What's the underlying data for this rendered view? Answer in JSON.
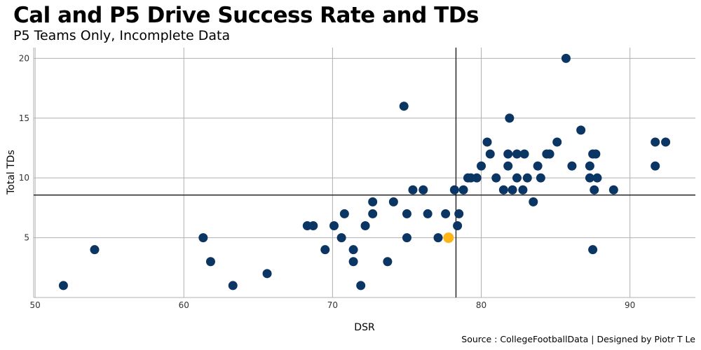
{
  "chart_data": {
    "type": "scatter",
    "title": "Cal and P5 Drive Success Rate and TDs",
    "subtitle": "P5 Teams Only, Incomplete Data",
    "caption": "Source : CollegeFootballData | Designed by Piotr T Le",
    "xlabel": "DSR",
    "ylabel": "Total TDs",
    "xlim": [
      49.9,
      94.4
    ],
    "ylim": [
      0,
      20.9
    ],
    "xticks": [
      50,
      60,
      70,
      80,
      90
    ],
    "yticks": [
      5,
      10,
      15,
      20
    ],
    "grid": true,
    "reference_lines": {
      "vertical_x": 78.3,
      "horizontal_y": 8.57
    },
    "colors": {
      "teams": "#0b3563",
      "cal": "#fdb515"
    },
    "highlight": {
      "team": "Cal",
      "x": 77.8,
      "y": 5
    },
    "points": [
      [
        51.9,
        1
      ],
      [
        54.0,
        4
      ],
      [
        61.3,
        5
      ],
      [
        61.8,
        3
      ],
      [
        63.3,
        1
      ],
      [
        65.6,
        2
      ],
      [
        68.3,
        6
      ],
      [
        68.7,
        6
      ],
      [
        69.5,
        4
      ],
      [
        70.1,
        6
      ],
      [
        70.6,
        5
      ],
      [
        70.8,
        7
      ],
      [
        71.4,
        4
      ],
      [
        71.4,
        3
      ],
      [
        71.9,
        1
      ],
      [
        72.2,
        6
      ],
      [
        72.7,
        7
      ],
      [
        72.7,
        8
      ],
      [
        73.7,
        3
      ],
      [
        74.1,
        8
      ],
      [
        74.8,
        16
      ],
      [
        75.0,
        7
      ],
      [
        75.0,
        5
      ],
      [
        75.4,
        9
      ],
      [
        76.1,
        9
      ],
      [
        76.4,
        7
      ],
      [
        77.1,
        5
      ],
      [
        77.6,
        7
      ],
      [
        78.2,
        9
      ],
      [
        78.4,
        6
      ],
      [
        78.5,
        7
      ],
      [
        78.8,
        9
      ],
      [
        79.1,
        10
      ],
      [
        79.3,
        10
      ],
      [
        79.7,
        10
      ],
      [
        80.0,
        11
      ],
      [
        80.4,
        13
      ],
      [
        80.6,
        12
      ],
      [
        81.0,
        10
      ],
      [
        81.5,
        9
      ],
      [
        81.8,
        11
      ],
      [
        81.8,
        12
      ],
      [
        81.9,
        15
      ],
      [
        82.1,
        9
      ],
      [
        82.4,
        12
      ],
      [
        82.4,
        10
      ],
      [
        82.8,
        9
      ],
      [
        82.9,
        12
      ],
      [
        83.1,
        10
      ],
      [
        83.5,
        8
      ],
      [
        83.8,
        11
      ],
      [
        84.0,
        10
      ],
      [
        84.4,
        12
      ],
      [
        84.6,
        12
      ],
      [
        85.1,
        13
      ],
      [
        85.7,
        20
      ],
      [
        86.1,
        11
      ],
      [
        86.7,
        14
      ],
      [
        87.3,
        11
      ],
      [
        87.3,
        10
      ],
      [
        87.5,
        4
      ],
      [
        87.5,
        12
      ],
      [
        87.7,
        12
      ],
      [
        87.6,
        9
      ],
      [
        87.8,
        10
      ],
      [
        88.9,
        9
      ],
      [
        91.7,
        13
      ],
      [
        91.7,
        11
      ],
      [
        92.4,
        13
      ]
    ]
  }
}
